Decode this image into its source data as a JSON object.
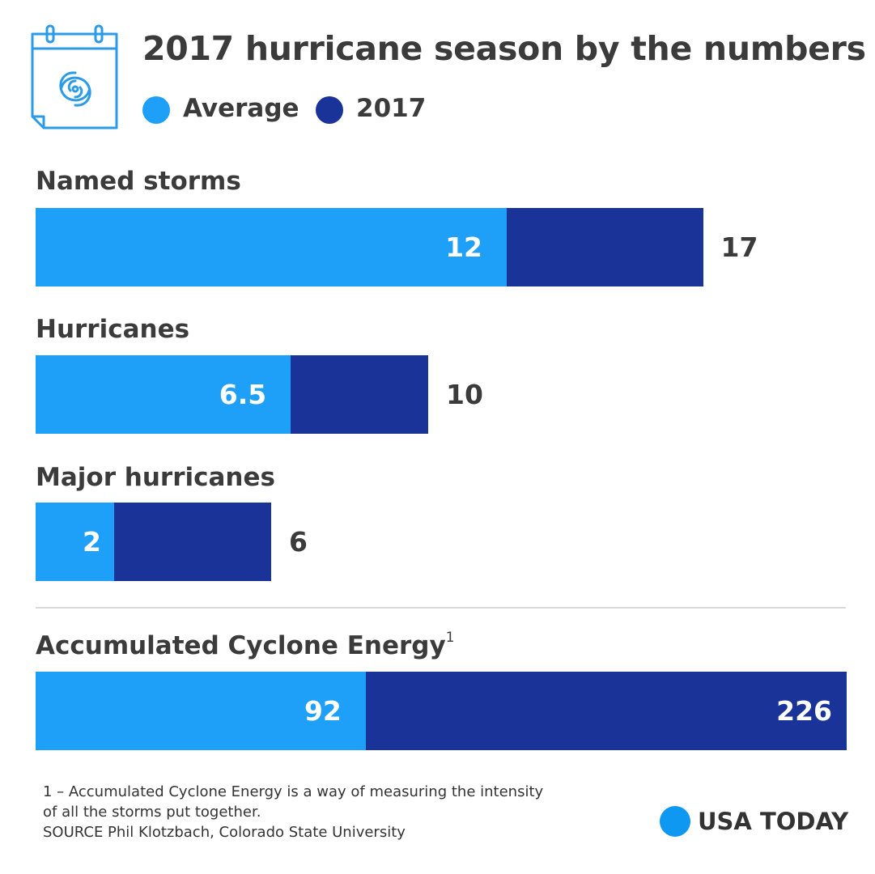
{
  "colors": {
    "average": "#1e9ff8",
    "year2017": "#1a3399",
    "brand": "#0f98f2",
    "icon": "#2b9be8"
  },
  "header": {
    "icon": "calendar-hurricane-icon",
    "title": "2017 hurricane season by the numbers"
  },
  "chart_data": {
    "type": "bar",
    "orientation": "horizontal",
    "title": "2017 hurricane season by the numbers",
    "legend": [
      "Average",
      "2017"
    ],
    "legend_position": "top",
    "categories": [
      "Named storms",
      "Hurricanes",
      "Major hurricanes",
      "Accumulated Cyclone Energy"
    ],
    "category_superscripts": [
      "",
      "",
      "",
      "1"
    ],
    "series": [
      {
        "name": "Average",
        "values": [
          12,
          6.5,
          2,
          92
        ],
        "labels": [
          "12",
          "6.5",
          "2",
          "92"
        ]
      },
      {
        "name": "2017",
        "values": [
          17,
          10,
          6,
          226
        ],
        "labels": [
          "17",
          "10",
          "6",
          "226"
        ]
      }
    ]
  },
  "footnote": {
    "line1": "1 – Accumulated Cyclone Energy is a way of measuring the intensity",
    "line2": "of all the storms put together.",
    "line3": "SOURCE Phil Klotzbach, Colorado State University"
  },
  "brand": {
    "name": "USA TODAY"
  }
}
